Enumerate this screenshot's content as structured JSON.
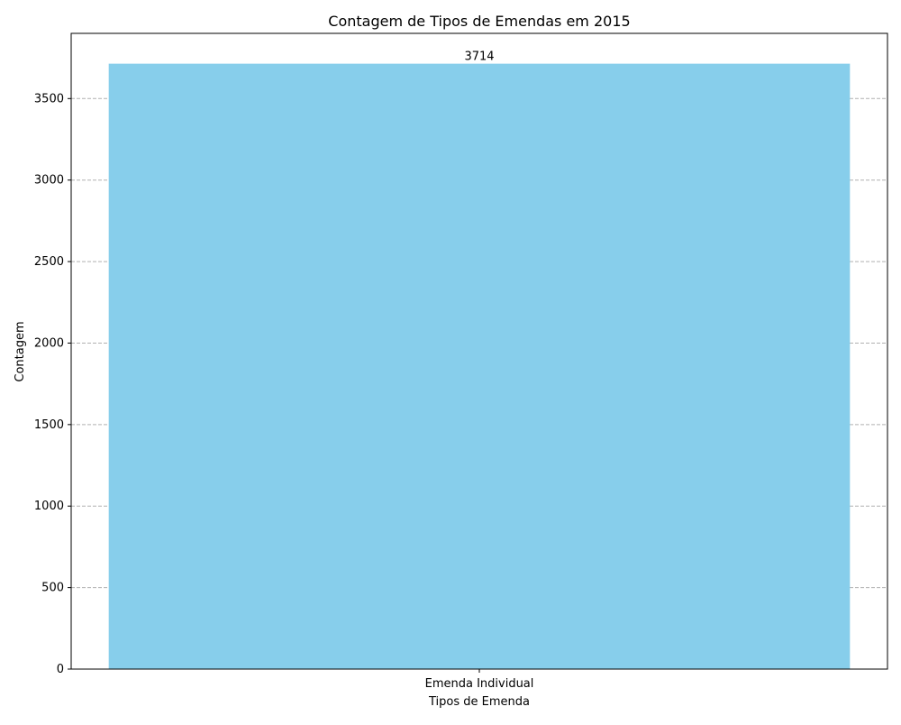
{
  "chart_data": {
    "type": "bar",
    "title": "Contagem de Tipos de Emendas em 2015",
    "xlabel": "Tipos de Emenda",
    "ylabel": "Contagem",
    "categories": [
      "Emenda Individual"
    ],
    "values": [
      3714
    ],
    "data_labels": [
      "3714"
    ],
    "ylim": [
      0,
      3900
    ],
    "yticks": [
      0,
      500,
      1000,
      1500,
      2000,
      2500,
      3000,
      3500
    ],
    "ytick_labels": [
      "0",
      "500",
      "1000",
      "1500",
      "2000",
      "2500",
      "3000",
      "3500"
    ],
    "grid": "y-dashed",
    "bar_color": "#87ceeb",
    "grid_color": "#b0b0b0"
  }
}
